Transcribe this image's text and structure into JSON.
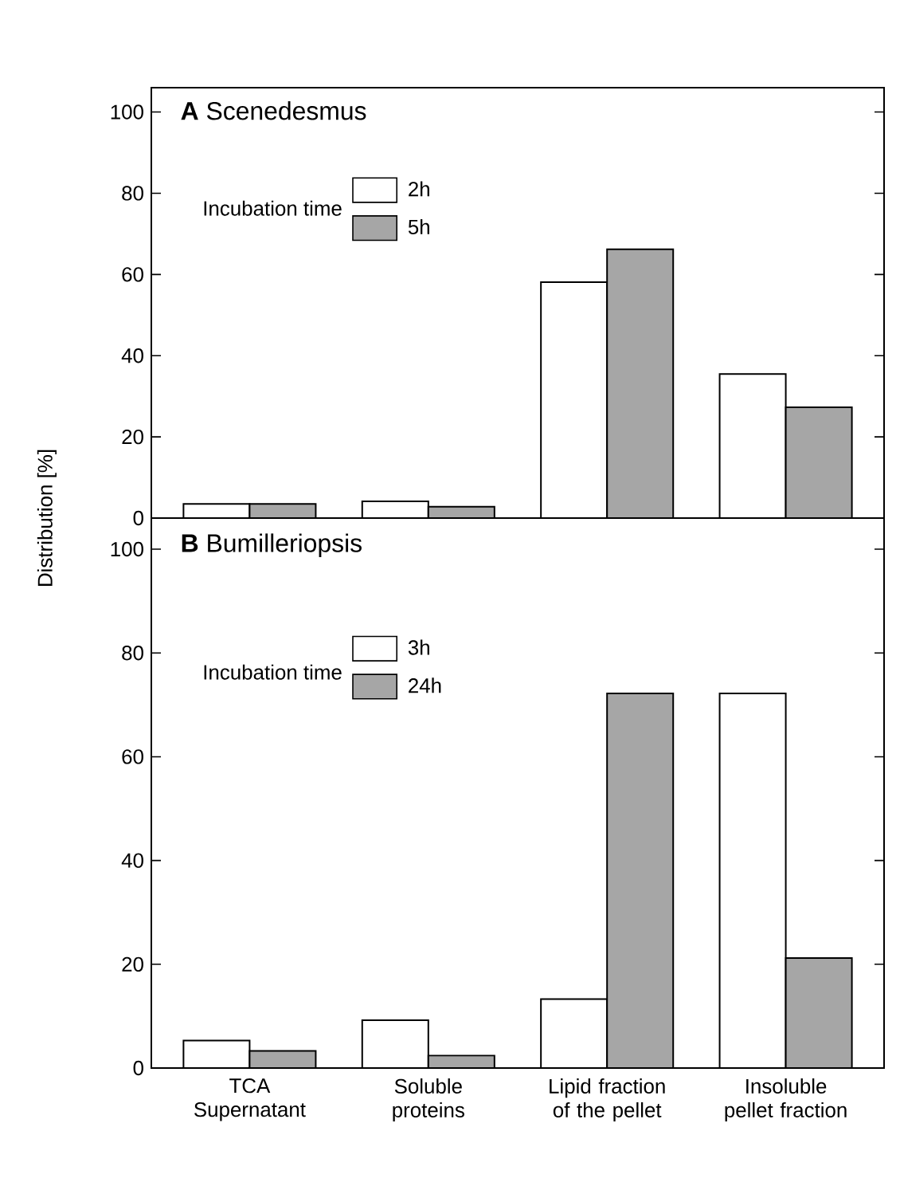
{
  "chart_data": [
    {
      "type": "bar",
      "title": "**A** Scenedesmus",
      "ylabel": "Distribution [%]",
      "legend_title": "Incubation time",
      "legend": "top left",
      "categories": [
        null,
        null,
        null,
        null
      ],
      "series": [
        {
          "name": "2h",
          "color": "#ffffff",
          "values": [
            3.5,
            4.1,
            58.1,
            35.5
          ]
        },
        {
          "name": "5h",
          "color": "#a6a6a6",
          "values": [
            3.5,
            2.8,
            66.2,
            27.3
          ]
        }
      ],
      "ylim": [
        0,
        106
      ],
      "yticks": [
        0,
        20,
        40,
        60,
        80,
        100
      ],
      "tick_labels": "y"
    },
    {
      "type": "bar",
      "title": "**B** Bumilleriopsis",
      "legend_title": "Incubation time",
      "legend": "top left",
      "categories": [
        "TCA Supernatant",
        "Soluble proteins",
        "Lipid fraction of the pellet",
        "Insoluble pellet fraction"
      ],
      "series": [
        {
          "name": "3h",
          "color": "#ffffff",
          "values": [
            5.3,
            9.2,
            13.3,
            72.2
          ]
        },
        {
          "name": "24h",
          "color": "#a6a6a6",
          "values": [
            3.3,
            2.4,
            72.2,
            21.2
          ]
        }
      ],
      "ylim": [
        0,
        106
      ],
      "yticks": [
        0,
        20,
        40,
        60,
        80,
        100
      ]
    }
  ]
}
